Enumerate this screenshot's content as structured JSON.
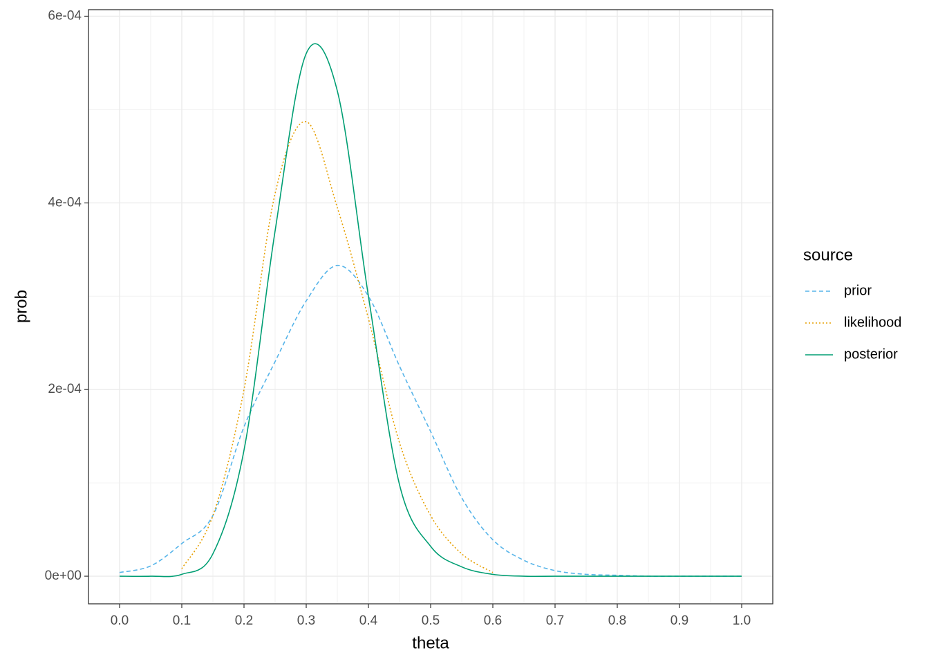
{
  "chart_data": {
    "type": "line",
    "x_label": "theta",
    "y_label": "prob",
    "legend_title": "source",
    "x": [
      0,
      0.05,
      0.1,
      0.15,
      0.2,
      0.25,
      0.3,
      0.35,
      0.4,
      0.45,
      0.5,
      0.55,
      0.6,
      0.65,
      0.7,
      0.75,
      0.8,
      0.85,
      0.9,
      0.95,
      1
    ],
    "series": [
      {
        "name": "prior",
        "color": "#56b4e9",
        "dash": "dashed",
        "values": [
          4e-06,
          1.1e-05,
          3.5e-05,
          6.5e-05,
          0.00016,
          0.00023,
          0.000295,
          0.000333,
          0.0003,
          0.000225,
          0.000155,
          8.4e-05,
          3.9e-05,
          1.7e-05,
          6e-06,
          2e-06,
          1e-06,
          0,
          0,
          0,
          0
        ]
      },
      {
        "name": "likelihood",
        "color": "#e69f00",
        "dash": "dotted",
        "values": [
          null,
          null,
          8e-06,
          6.5e-05,
          0.0002,
          0.00041,
          0.000487,
          0.000395,
          0.000276,
          0.000143,
          6.5e-05,
          2.4e-05,
          4e-06,
          null,
          null,
          null,
          null,
          null,
          null,
          null,
          null
        ]
      },
      {
        "name": "posterior",
        "color": "#009e73",
        "dash": "solid",
        "values": [
          0,
          0,
          2e-06,
          2.4e-05,
          0.000135,
          0.00037,
          0.00056,
          0.00052,
          0.0003,
          9.8e-05,
          3.2e-05,
          1e-05,
          2e-06,
          0,
          0,
          0,
          0,
          0,
          0,
          0,
          0
        ]
      }
    ],
    "xlim": [
      -0.05,
      1.05
    ],
    "ylim": [
      -2.96e-05,
      0.000607
    ],
    "xticks": [
      {
        "value": 0,
        "label": "0.0"
      },
      0.1,
      0.2,
      0.3,
      0.4,
      0.5,
      0.6,
      0.7,
      0.8,
      0.9,
      {
        "value": 1,
        "label": "1.0"
      }
    ],
    "yticks": [
      {
        "value": 0,
        "label": "0e+00"
      },
      {
        "value": 0.0002,
        "label": "2e-04"
      },
      {
        "value": 0.0004,
        "label": "4e-04"
      },
      {
        "value": 0.0006,
        "label": "6e-04"
      }
    ],
    "minor_xticks": [
      0.05,
      0.15,
      0.25,
      0.35,
      0.45,
      0.55,
      0.65,
      0.75,
      0.85,
      0.95
    ],
    "minor_yticks": [
      0.0001,
      0.0003,
      0.0005
    ],
    "grid": true
  }
}
